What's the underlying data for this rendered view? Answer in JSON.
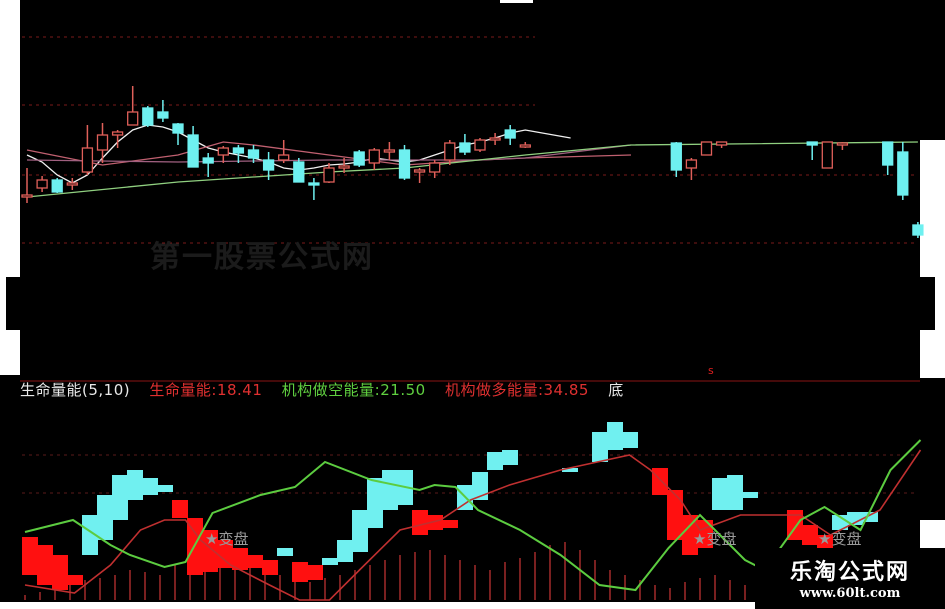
{
  "colors": {
    "up": "#e0605a",
    "down": "#6ef0f0",
    "ma_white": "#f0f0f0",
    "ma_pink": "#c06070",
    "ma_purple": "#a06080",
    "ma_green": "#90d080",
    "green_line": "#5ccc40",
    "red_line": "#c03030",
    "red_block": "#ff1010",
    "cyan_block": "#70f0f0",
    "grid": "#7a1a1a",
    "vol": "#7a2020"
  },
  "watermark": "第一股票公式网",
  "logo": {
    "name": "乐淘公式网",
    "url": "www.60lt.com"
  },
  "legend": {
    "indicator": "生命量能(5,10)",
    "life_label": "生命量能:18.41",
    "short_label": "机构做空能量:21.50",
    "long_label": "机构做多能量:34.85",
    "cut": "底"
  },
  "signal_tags": [
    "★变盘",
    "★变盘",
    "★变盘"
  ],
  "chart_data": [
    {
      "type": "candlestick",
      "candles_format": "[day, open, close, high, low]",
      "candles": [
        [
          0,
          35,
          35,
          62,
          27
        ],
        [
          1,
          42,
          50,
          54,
          38
        ],
        [
          2,
          50,
          38,
          52,
          37
        ],
        [
          3,
          47,
          47,
          52,
          40
        ],
        [
          4,
          58,
          82,
          105,
          55
        ],
        [
          5,
          80,
          95,
          107,
          67
        ],
        [
          6,
          95,
          98,
          100,
          82
        ],
        [
          7,
          105,
          118,
          144,
          105
        ],
        [
          8,
          122,
          105,
          124,
          103
        ],
        [
          9,
          118,
          112,
          130,
          108
        ],
        [
          10,
          106,
          97,
          107,
          85
        ],
        [
          11,
          95,
          63,
          104,
          63
        ],
        [
          12,
          72,
          67,
          77,
          53
        ],
        [
          13,
          75,
          82,
          84,
          67
        ],
        [
          14,
          82,
          77,
          85,
          67
        ],
        [
          15,
          80,
          72,
          85,
          67
        ],
        [
          16,
          70,
          60,
          78,
          50
        ],
        [
          17,
          70,
          75,
          90,
          67
        ],
        [
          18,
          68,
          48,
          72,
          48
        ],
        [
          19,
          47,
          45,
          52,
          30
        ],
        [
          20,
          48,
          62,
          67,
          47
        ],
        [
          21,
          62,
          64,
          72,
          57
        ],
        [
          22,
          78,
          65,
          80,
          63
        ],
        [
          23,
          67,
          80,
          82,
          60
        ],
        [
          24,
          80,
          80,
          88,
          70
        ],
        [
          25,
          80,
          52,
          85,
          50
        ],
        [
          26,
          58,
          60,
          62,
          47
        ],
        [
          27,
          58,
          67,
          70,
          52
        ],
        [
          28,
          70,
          87,
          90,
          65
        ],
        [
          29,
          87,
          78,
          96,
          75
        ],
        [
          30,
          80,
          90,
          92,
          78
        ],
        [
          31,
          90,
          92,
          97,
          85
        ],
        [
          32,
          100,
          92,
          105,
          85
        ],
        [
          33,
          85,
          85,
          88,
          82
        ],
        [
          43,
          87,
          60,
          88,
          53
        ],
        [
          44,
          62,
          70,
          72,
          50
        ],
        [
          45,
          75,
          88,
          88,
          75
        ],
        [
          46,
          85,
          88,
          88,
          82
        ],
        [
          52,
          88,
          85,
          88,
          70
        ],
        [
          53,
          62,
          88,
          88,
          62
        ],
        [
          54,
          85,
          87,
          88,
          80
        ],
        [
          57,
          88,
          65,
          88,
          55
        ],
        [
          58,
          78,
          35,
          88,
          30
        ],
        [
          59,
          5,
          -5,
          8,
          -8
        ]
      ],
      "moving_averages": {
        "white": [
          [
            0,
            75
          ],
          [
            1,
            68
          ],
          [
            2,
            55
          ],
          [
            3,
            47
          ],
          [
            4,
            55
          ],
          [
            5,
            72
          ],
          [
            6,
            88
          ],
          [
            7,
            100
          ],
          [
            8,
            105
          ],
          [
            9,
            103
          ],
          [
            10,
            98
          ],
          [
            11,
            90
          ],
          [
            12,
            82
          ],
          [
            13,
            78
          ],
          [
            14,
            75
          ],
          [
            15,
            72
          ],
          [
            16,
            68
          ],
          [
            17,
            62
          ],
          [
            18,
            60
          ],
          [
            19,
            62
          ],
          [
            20,
            65
          ],
          [
            21,
            66
          ],
          [
            22,
            68
          ],
          [
            23,
            72
          ],
          [
            24,
            70
          ],
          [
            25,
            68
          ],
          [
            26,
            70
          ],
          [
            27,
            75
          ],
          [
            28,
            80
          ],
          [
            29,
            85
          ],
          [
            30,
            88
          ],
          [
            31,
            92
          ],
          [
            32,
            97
          ],
          [
            33,
            100
          ],
          [
            36,
            92
          ]
        ],
        "pink": [
          [
            0,
            80
          ],
          [
            5,
            65
          ],
          [
            10,
            75
          ],
          [
            13,
            88
          ],
          [
            15,
            85
          ],
          [
            20,
            75
          ],
          [
            25,
            65
          ],
          [
            30,
            70
          ],
          [
            33,
            72
          ],
          [
            40,
            75
          ]
        ],
        "purple": [
          [
            0,
            70
          ],
          [
            10,
            68
          ],
          [
            20,
            70
          ],
          [
            30,
            70
          ],
          [
            33,
            72
          ],
          [
            40,
            85
          ]
        ],
        "green": [
          [
            0,
            33
          ],
          [
            10,
            48
          ],
          [
            20,
            58
          ],
          [
            25,
            62
          ],
          [
            33,
            75
          ],
          [
            40,
            85
          ],
          [
            59,
            88
          ]
        ]
      },
      "ylim": [
        -10,
        200
      ],
      "grid": true
    },
    {
      "type": "indicator",
      "title": "生命量能(5,10)",
      "series": [
        {
          "name": "生命量能",
          "value": 18.41,
          "points": [
            [
              0.2,
              15
            ],
            [
              3.5,
              7
            ],
            [
              5.9,
              35
            ],
            [
              7.9,
              70
            ],
            [
              9.5,
              80
            ],
            [
              10.9,
              80
            ],
            [
              11.9,
              60
            ],
            [
              13.9,
              35
            ],
            [
              16.5,
              15
            ],
            [
              18.5,
              0
            ],
            [
              20.5,
              0
            ],
            [
              22.5,
              30
            ],
            [
              25.2,
              70
            ],
            [
              27.9,
              80
            ],
            [
              29.9,
              100
            ],
            [
              32.5,
              115
            ],
            [
              35.9,
              130
            ],
            [
              40.5,
              145
            ],
            [
              41.9,
              130
            ],
            [
              43.9,
              100
            ],
            [
              45.2,
              70
            ],
            [
              47.9,
              85
            ],
            [
              51.9,
              85
            ],
            [
              53.9,
              65
            ],
            [
              57.2,
              90
            ],
            [
              59.9,
              150
            ]
          ]
        },
        {
          "name": "机构做空能量",
          "value": 21.5,
          "points": [
            [
              0.2,
              68
            ],
            [
              3.4,
              80
            ],
            [
              5.9,
              55
            ],
            [
              7.2,
              45
            ],
            [
              9.5,
              33
            ],
            [
              10.9,
              38
            ],
            [
              12.7,
              87
            ],
            [
              15.9,
              105
            ],
            [
              18.2,
              113
            ],
            [
              20.2,
              138
            ],
            [
              23.3,
              120
            ],
            [
              26.5,
              110
            ],
            [
              27.5,
              115
            ],
            [
              28.9,
              113
            ],
            [
              30.4,
              90
            ],
            [
              33.2,
              70
            ],
            [
              35.9,
              45
            ],
            [
              38.5,
              15
            ],
            [
              40.9,
              10
            ],
            [
              43.1,
              52
            ],
            [
              45.2,
              85
            ],
            [
              48.2,
              40
            ],
            [
              49.5,
              30
            ],
            [
              51.9,
              80
            ],
            [
              53.5,
              93
            ],
            [
              55.9,
              70
            ],
            [
              57.9,
              130
            ],
            [
              59.9,
              160
            ]
          ]
        },
        {
          "name": "机构做多能量",
          "value": 34.85
        }
      ],
      "cyan_blocks": [
        [
          4,
          85,
          45
        ],
        [
          5,
          105,
          60
        ],
        [
          6,
          125,
          80
        ],
        [
          7,
          130,
          100
        ],
        [
          8,
          122,
          105
        ],
        [
          9,
          115,
          108
        ],
        [
          17,
          52,
          44
        ],
        [
          20,
          42,
          35
        ],
        [
          21,
          60,
          38
        ],
        [
          22,
          90,
          48
        ],
        [
          23,
          122,
          72
        ],
        [
          24,
          130,
          90
        ],
        [
          25,
          130,
          95
        ],
        [
          29,
          115,
          90
        ],
        [
          30,
          128,
          100
        ],
        [
          31,
          148,
          130
        ],
        [
          32,
          150,
          135
        ],
        [
          36,
          132,
          128
        ],
        [
          38,
          168,
          138
        ],
        [
          39,
          178,
          150
        ],
        [
          40,
          168,
          152
        ],
        [
          46,
          122,
          90
        ],
        [
          47,
          125,
          90
        ],
        [
          48,
          108,
          102
        ],
        [
          54,
          85,
          70
        ],
        [
          55,
          88,
          75
        ],
        [
          56,
          88,
          78
        ]
      ],
      "red_blocks": [
        [
          0,
          63,
          25
        ],
        [
          1,
          55,
          15
        ],
        [
          2,
          45,
          10
        ],
        [
          3,
          25,
          15
        ],
        [
          10,
          100,
          82
        ],
        [
          11,
          82,
          25
        ],
        [
          12,
          70,
          28
        ],
        [
          13,
          60,
          32
        ],
        [
          14,
          52,
          30
        ],
        [
          15,
          45,
          32
        ],
        [
          16,
          40,
          25
        ],
        [
          18,
          38,
          18
        ],
        [
          19,
          35,
          20
        ],
        [
          26,
          90,
          65
        ],
        [
          27,
          85,
          70
        ],
        [
          28,
          80,
          72
        ],
        [
          42,
          132,
          105
        ],
        [
          43,
          110,
          60
        ],
        [
          44,
          85,
          45
        ],
        [
          45,
          80,
          52
        ],
        [
          51,
          90,
          60
        ],
        [
          52,
          75,
          55
        ],
        [
          53,
          65,
          50
        ]
      ],
      "bars": [
        5,
        8,
        10,
        15,
        20,
        22,
        25,
        30,
        28,
        25,
        35,
        40,
        45,
        50,
        40,
        35,
        30,
        25,
        20,
        18,
        22,
        25,
        30,
        35,
        40,
        45,
        48,
        50,
        45,
        40,
        35,
        30,
        38,
        42,
        48,
        55,
        58,
        50,
        40,
        30,
        25,
        20,
        15,
        12,
        18,
        22,
        25,
        20,
        15
      ],
      "ylim": [
        0,
        200
      ],
      "grid": true
    }
  ]
}
